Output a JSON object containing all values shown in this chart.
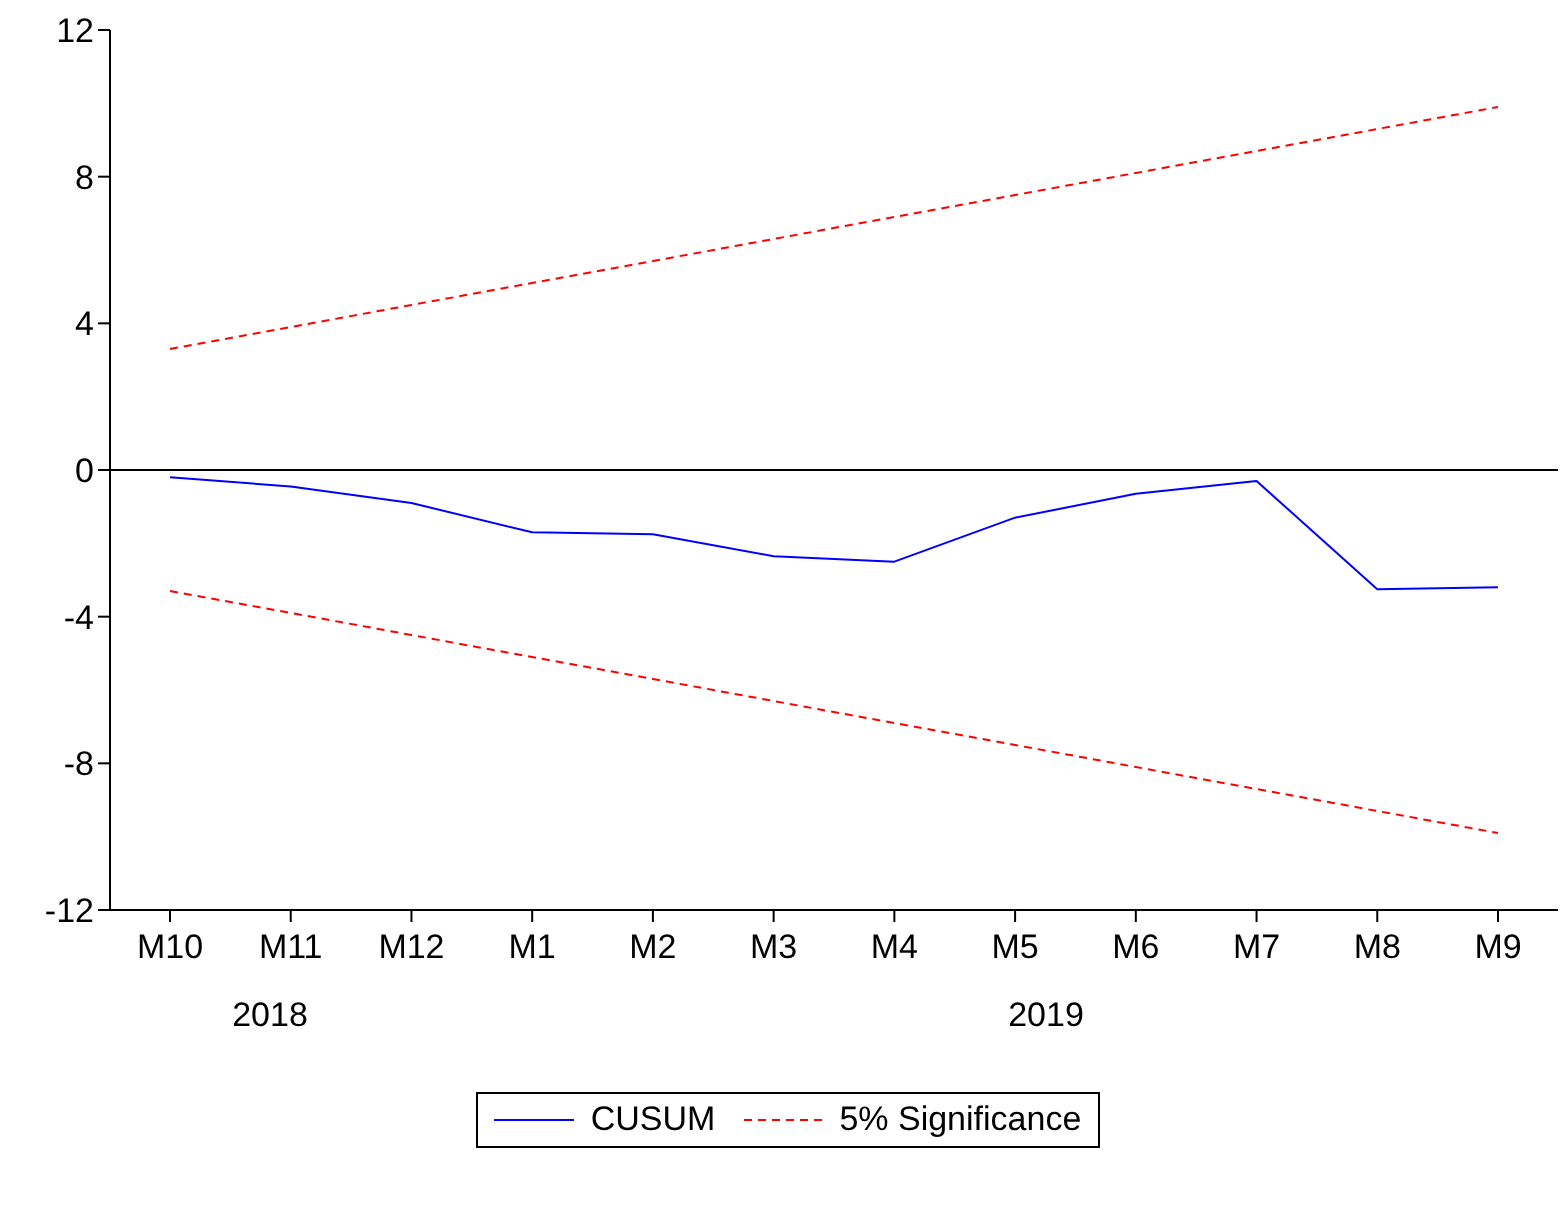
{
  "chart_data": {
    "type": "line",
    "categories": [
      "M10",
      "M11",
      "M12",
      "M1",
      "M2",
      "M3",
      "M4",
      "M5",
      "M6",
      "M7",
      "M8",
      "M9"
    ],
    "series": [
      {
        "name": "CUSUM",
        "color": "#0000ff",
        "values": [
          -0.2,
          -0.45,
          -0.9,
          -1.7,
          -1.75,
          -2.35,
          -2.5,
          -1.3,
          -0.65,
          -0.3,
          -3.25,
          -3.2
        ]
      },
      {
        "name": "5% Significance",
        "color": "#ff0000",
        "line_style": "dashed",
        "values": [
          3.3,
          3.9,
          4.5,
          5.1,
          5.7,
          6.3,
          6.9,
          7.5,
          8.1,
          8.7,
          9.3,
          9.9
        ]
      },
      {
        "color": "#ff0000",
        "line_style": "dashed",
        "values": [
          -3.3,
          -3.9,
          -4.5,
          -5.1,
          -5.7,
          -6.3,
          -6.9,
          -7.5,
          -8.1,
          -8.7,
          -9.3,
          -9.9
        ]
      }
    ],
    "ylim": [
      -12,
      12
    ],
    "yticks": [
      -12,
      -8,
      -4,
      0,
      4,
      8,
      12
    ],
    "ref_lines": [
      {
        "axis": "y",
        "value": 0,
        "color": "#000000"
      }
    ],
    "annotations": [
      "2018",
      "2019"
    ],
    "grid": false,
    "legend": "bottom",
    "marker": "none"
  }
}
